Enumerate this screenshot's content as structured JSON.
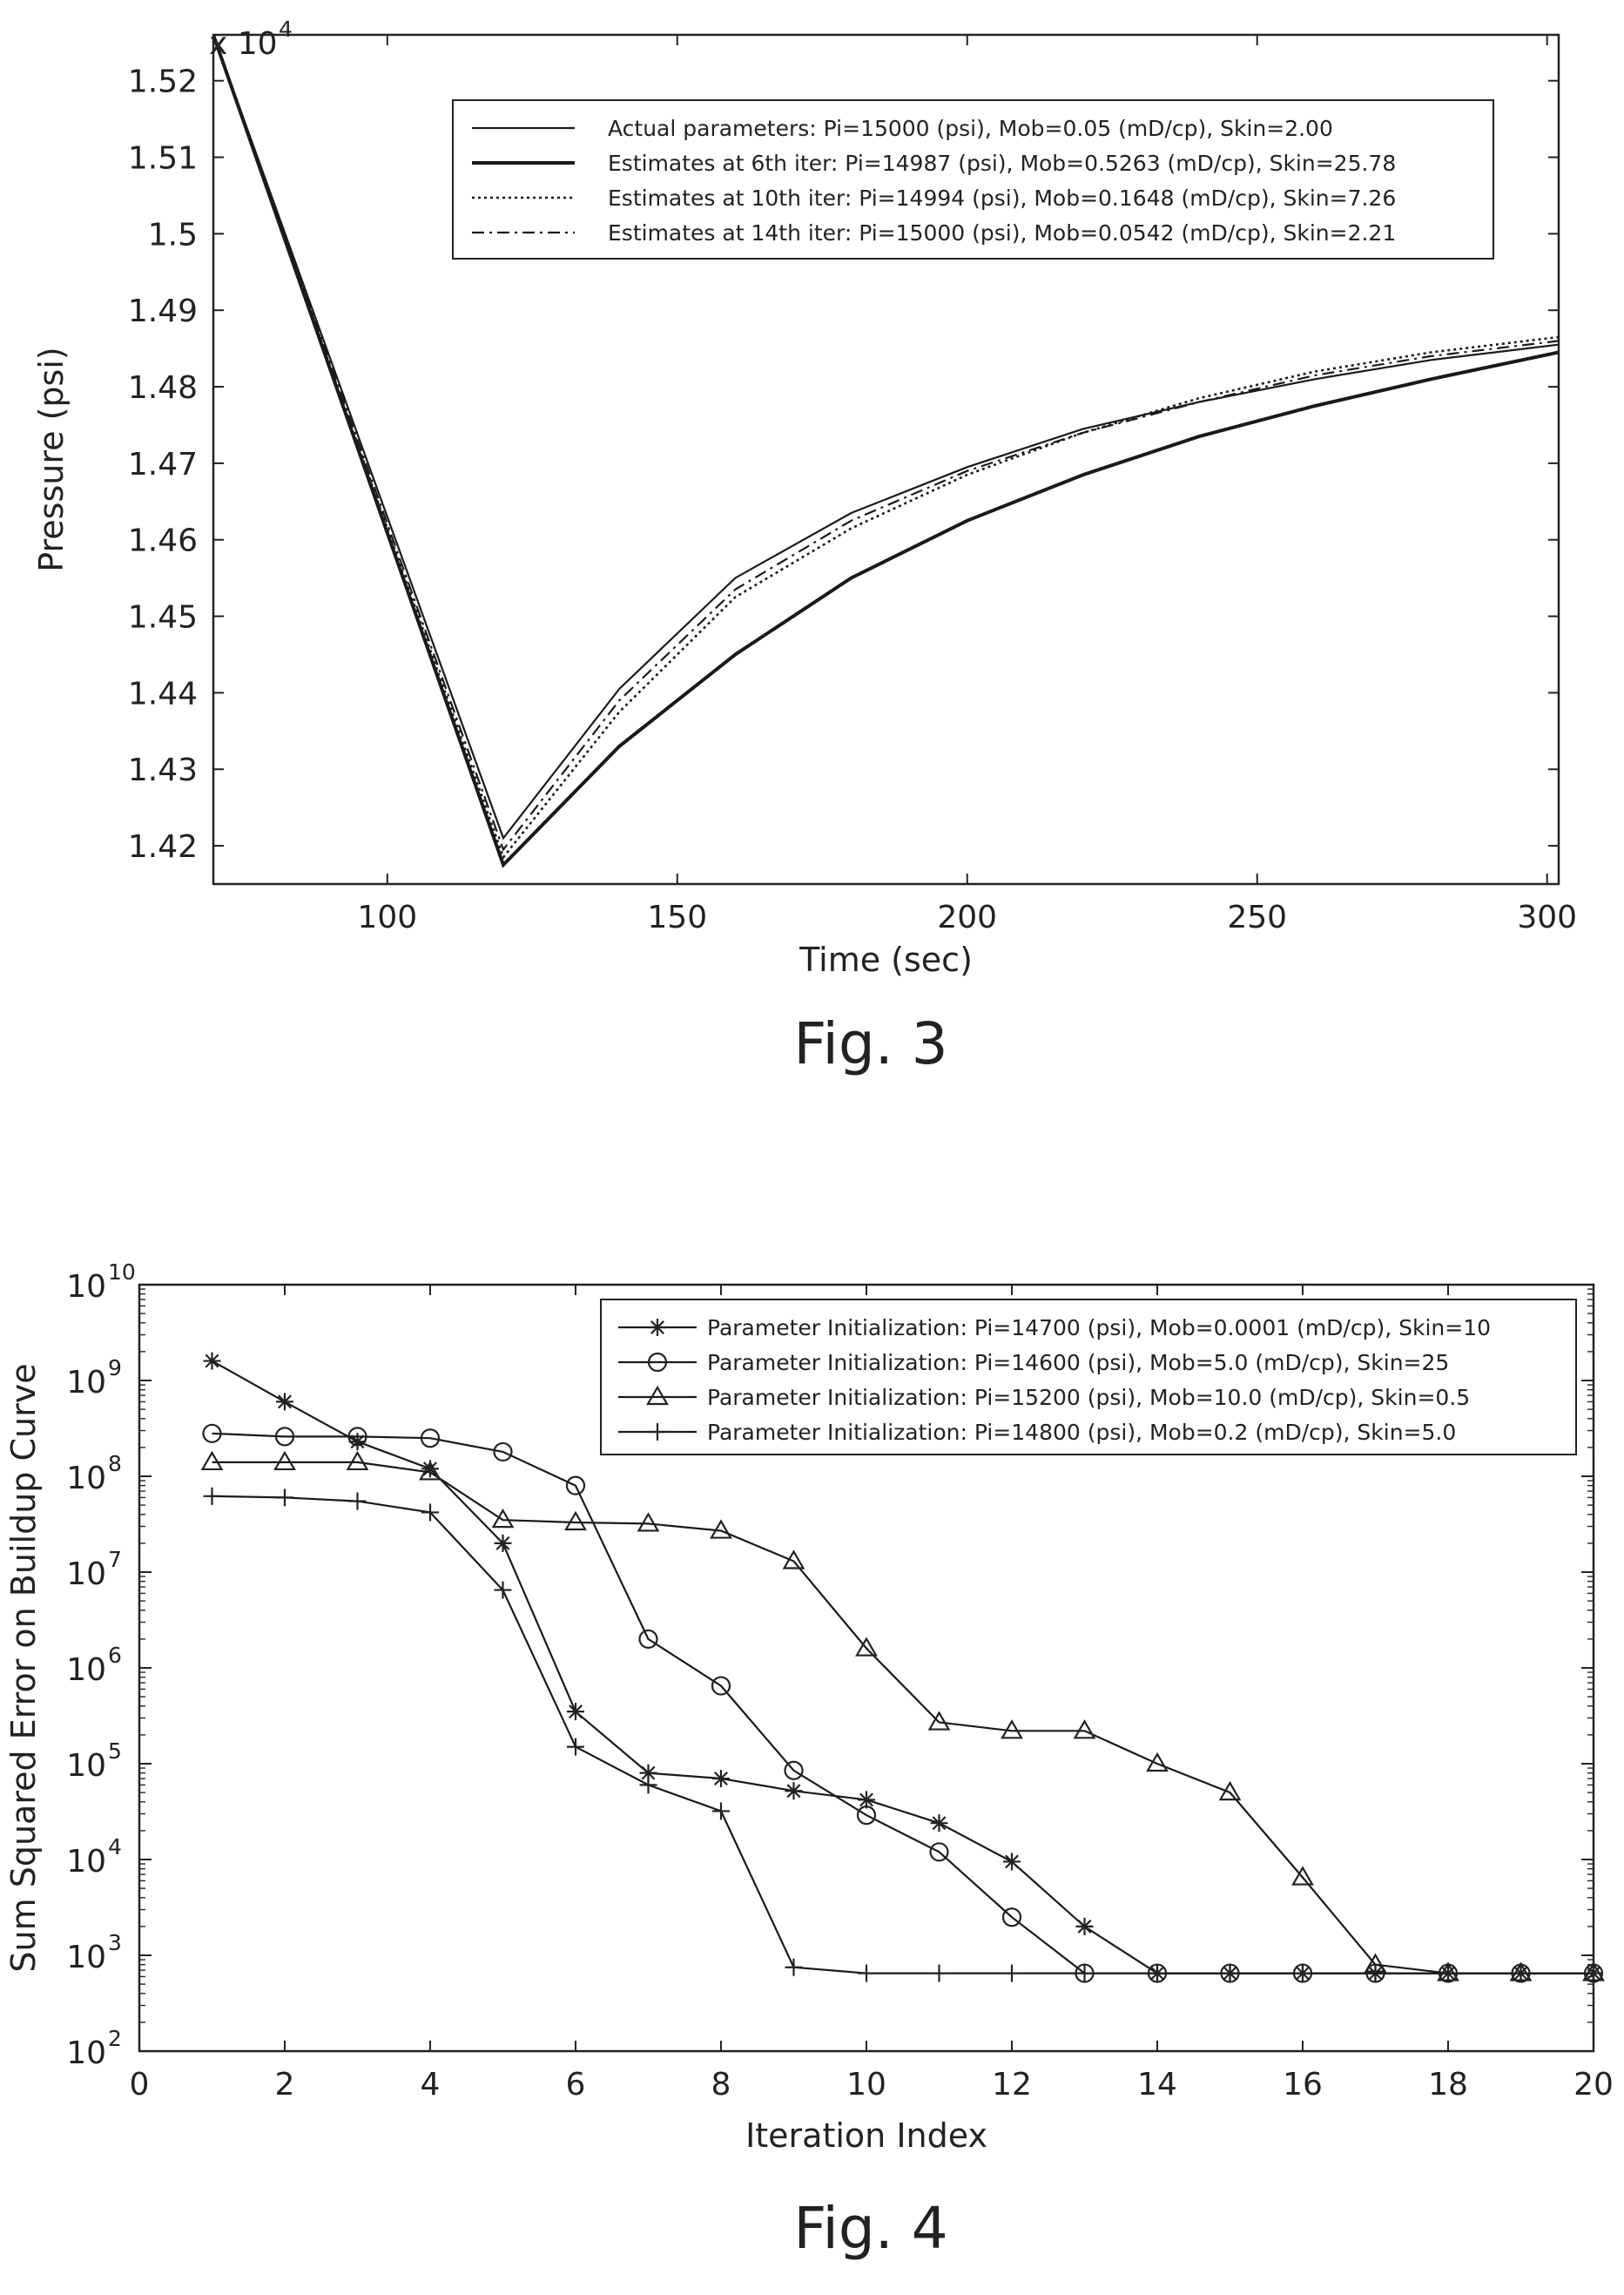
{
  "figures": {
    "fig3": {
      "caption": "Fig. 3"
    },
    "fig4": {
      "caption": "Fig. 4"
    }
  },
  "chart_data": [
    {
      "type": "line",
      "title": "",
      "xlabel": "Time (sec)",
      "ylabel": "Pressure (psi)",
      "y_multiplier_label": "x 10",
      "y_multiplier_exp": "4",
      "xlim": [
        70,
        302
      ],
      "ylim": [
        1.415,
        1.526
      ],
      "grid": false,
      "legend_position": "top-right",
      "x_ticks": [
        100,
        150,
        200,
        250,
        300
      ],
      "y_ticks": [
        1.42,
        1.43,
        1.44,
        1.45,
        1.46,
        1.47,
        1.48,
        1.49,
        1.5,
        1.51,
        1.52
      ],
      "series": [
        {
          "name": "Actual parameters: Pi=15000 (psi), Mob=0.05 (mD/cp), Skin=2.00",
          "style": "solid",
          "x": [
            70,
            120,
            140,
            160,
            180,
            200,
            220,
            240,
            260,
            280,
            302
          ],
          "y": [
            1.526,
            1.421,
            1.4405,
            1.455,
            1.4635,
            1.4695,
            1.4745,
            1.478,
            1.481,
            1.4835,
            1.4855
          ]
        },
        {
          "name": "Estimates at 6th iter: Pi=14987 (psi), Mob=0.5263 (mD/cp), Skin=25.78",
          "style": "solid-bold",
          "x": [
            70,
            120,
            140,
            160,
            180,
            200,
            220,
            240,
            260,
            280,
            302
          ],
          "y": [
            1.526,
            1.4175,
            1.433,
            1.445,
            1.455,
            1.4625,
            1.4685,
            1.4735,
            1.4775,
            1.481,
            1.4845
          ]
        },
        {
          "name": "Estimates at 10th iter: Pi=14994 (psi), Mob=0.1648 (mD/cp), Skin=7.26",
          "style": "dotted",
          "x": [
            70,
            120,
            140,
            160,
            180,
            200,
            220,
            240,
            260,
            280,
            302
          ],
          "y": [
            1.526,
            1.4185,
            1.4375,
            1.4525,
            1.4615,
            1.4685,
            1.474,
            1.4785,
            1.482,
            1.4845,
            1.4865
          ]
        },
        {
          "name": "Estimates at 14th iter: Pi=15000 (psi), Mob=0.0542 (mD/cp), Skin=2.21",
          "style": "dashdot",
          "x": [
            70,
            120,
            140,
            160,
            180,
            200,
            220,
            240,
            260,
            280,
            302
          ],
          "y": [
            1.526,
            1.4195,
            1.439,
            1.4535,
            1.4625,
            1.469,
            1.474,
            1.478,
            1.4815,
            1.484,
            1.486
          ]
        }
      ]
    },
    {
      "type": "line",
      "title": "",
      "xlabel": "Iteration Index",
      "ylabel": "Sum Squared Error on Buildup Curve",
      "yscale": "log",
      "xlim": [
        0,
        20
      ],
      "ylim": [
        100,
        10000000000
      ],
      "grid": false,
      "legend_position": "top-right",
      "x_ticks": [
        0,
        2,
        4,
        6,
        8,
        10,
        12,
        14,
        16,
        18,
        20
      ],
      "y_tick_exponents": [
        2,
        3,
        4,
        5,
        6,
        7,
        8,
        9,
        10
      ],
      "y_tick_base": "10",
      "series": [
        {
          "name": "Parameter Initialization: Pi=14700 (psi), Mob=0.0001 (mD/cp), Skin=10",
          "marker": "asterisk",
          "x": [
            1,
            2,
            3,
            4,
            5,
            6,
            7,
            8,
            9,
            10,
            11,
            12,
            13,
            14,
            15,
            16,
            17,
            18,
            19,
            20
          ],
          "y": [
            1600000000,
            600000000,
            230000000,
            120000000,
            20000000,
            350000,
            80000,
            70000,
            52000,
            42000,
            24000,
            9500,
            2000,
            650,
            650,
            650,
            650,
            650,
            650,
            650
          ]
        },
        {
          "name": "Parameter Initialization: Pi=14600 (psi), Mob=5.0 (mD/cp), Skin=25",
          "marker": "circle",
          "x": [
            1,
            2,
            3,
            4,
            5,
            6,
            7,
            8,
            9,
            10,
            11,
            12,
            13,
            14,
            15,
            16,
            17,
            18,
            19,
            20
          ],
          "y": [
            280000000,
            260000000,
            260000000,
            250000000,
            180000000,
            80000000,
            2000000,
            650000,
            85000,
            29000,
            12000,
            2500,
            650,
            650,
            650,
            650,
            650,
            650,
            650,
            650
          ]
        },
        {
          "name": "Parameter Initialization: Pi=15200 (psi), Mob=10.0 (mD/cp), Skin=0.5",
          "marker": "triangle",
          "x": [
            1,
            2,
            3,
            4,
            5,
            6,
            7,
            8,
            9,
            10,
            11,
            12,
            13,
            14,
            15,
            16,
            17,
            18,
            19,
            20
          ],
          "y": [
            140000000,
            140000000,
            140000000,
            110000000,
            35000000,
            33000000,
            32000000,
            27000000,
            13000000,
            1600000,
            270000,
            220000,
            220000,
            100000,
            50000,
            6500,
            800,
            650,
            650,
            650
          ]
        },
        {
          "name": "Parameter Initialization: Pi=14800 (psi), Mob=0.2 (mD/cp), Skin=5.0",
          "marker": "plus",
          "x": [
            1,
            2,
            3,
            4,
            5,
            6,
            7,
            8,
            9,
            10,
            11,
            12,
            13,
            14,
            15,
            16,
            17,
            18,
            19,
            20
          ],
          "y": [
            62000000,
            60000000,
            55000000,
            42000000,
            6500000,
            150000,
            60000,
            32000,
            750,
            650,
            650,
            650,
            650,
            650,
            650,
            650,
            650,
            650,
            650,
            650
          ]
        }
      ]
    }
  ]
}
